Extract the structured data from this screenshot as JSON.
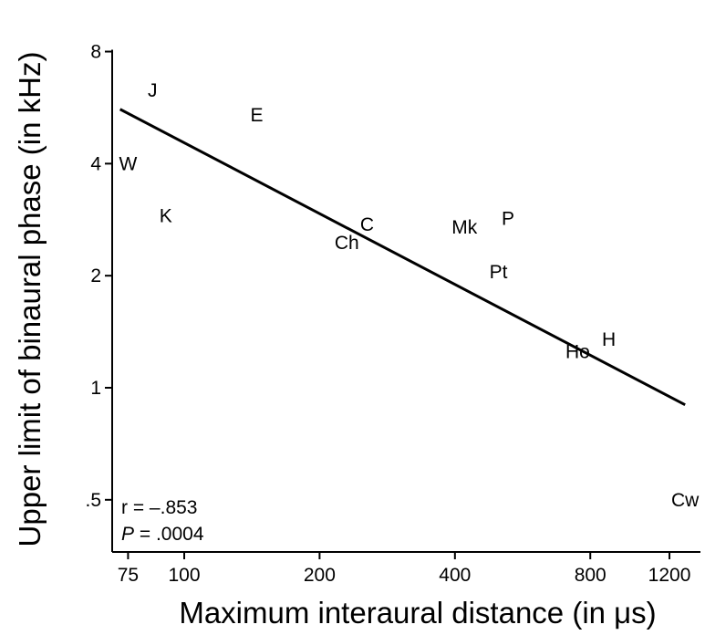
{
  "chart_data": {
    "type": "scatter",
    "xlabel": "Maximum interaural distance (in μs)",
    "ylabel": "Upper limit of binaural phase (in kHz)",
    "x_scale": "log",
    "y_scale": "log",
    "xlim": [
      70,
      1300
    ],
    "ylim": [
      0.4,
      8
    ],
    "x_ticks": [
      75,
      100,
      200,
      400,
      800,
      1200
    ],
    "x_tick_labels": [
      "75",
      "100",
      "200",
      "400",
      "800",
      "1200"
    ],
    "y_ticks": [
      0.5,
      1,
      2,
      4,
      8
    ],
    "y_tick_labels": [
      ".5",
      "1",
      "2",
      "4",
      "8"
    ],
    "points": [
      {
        "label": "J",
        "x": 85,
        "y": 6.3
      },
      {
        "label": "E",
        "x": 145,
        "y": 5.4
      },
      {
        "label": "W",
        "x": 75,
        "y": 4.0
      },
      {
        "label": "K",
        "x": 91,
        "y": 2.9
      },
      {
        "label": "C",
        "x": 255,
        "y": 2.75
      },
      {
        "label": "Ch",
        "x": 230,
        "y": 2.45
      },
      {
        "label": "Mk",
        "x": 420,
        "y": 2.7
      },
      {
        "label": "P",
        "x": 525,
        "y": 2.85
      },
      {
        "label": "Pt",
        "x": 500,
        "y": 2.05
      },
      {
        "label": "H",
        "x": 880,
        "y": 1.35
      },
      {
        "label": "Ho",
        "x": 750,
        "y": 1.25
      },
      {
        "label": "Cw",
        "x": 1300,
        "y": 0.5
      }
    ],
    "regression_line": {
      "x": [
        72,
        1300
      ],
      "y": [
        5.6,
        0.9
      ]
    },
    "annotations": {
      "r": "r = –.853",
      "p_label": "P",
      "p_value": " = .0004"
    }
  }
}
